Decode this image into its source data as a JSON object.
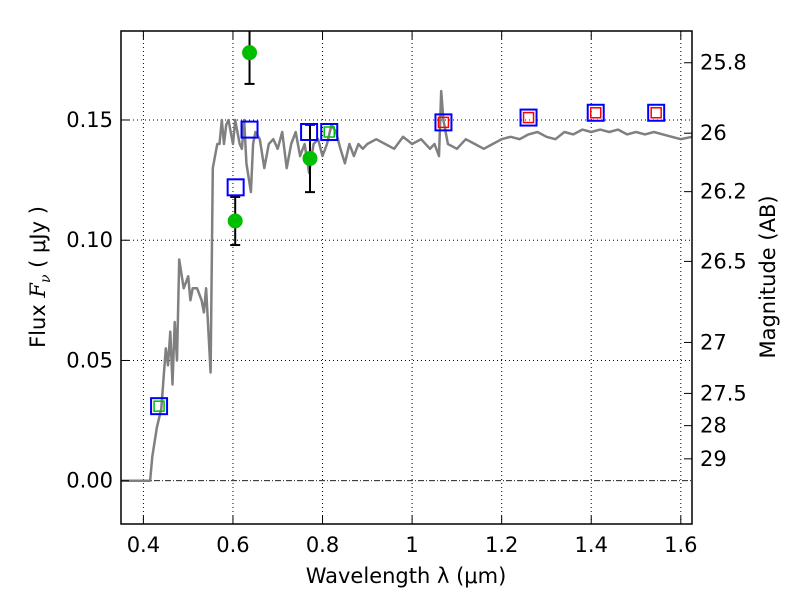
{
  "chart_data": {
    "type": "scatter",
    "xlabel": "Wavelength  λ (μm)",
    "ylabel_text": "Flux  ",
    "ylabel_symbol": "F",
    "ylabel_sub": "ν",
    "ylabel_unit": "  ( μJy )",
    "y2label": "Magnitude (AB)",
    "xlim": [
      0.35,
      1.625
    ],
    "ylim": [
      -0.018,
      0.187
    ],
    "grid": true,
    "x_ticks": [
      0.4,
      0.6,
      0.8,
      1.0,
      1.2,
      1.4,
      1.6
    ],
    "x_tick_labels": [
      "0.4",
      "0.6",
      "0.8",
      "1",
      "1.2",
      "1.4",
      "1.6"
    ],
    "y_ticks": [
      0.0,
      0.05,
      0.1,
      0.15
    ],
    "y_tick_labels": [
      "0.00",
      "0.05",
      "0.10",
      "0.15"
    ],
    "mag_ticks": [
      {
        "label": "25.8",
        "flux": 0.1738
      },
      {
        "label": "26",
        "flux": 0.1445
      },
      {
        "label": "26.2",
        "flux": 0.1202
      },
      {
        "label": "26.5",
        "flux": 0.0912
      },
      {
        "label": "27",
        "flux": 0.0575
      },
      {
        "label": "27.5",
        "flux": 0.0363
      },
      {
        "label": "28",
        "flux": 0.0229
      },
      {
        "label": "29",
        "flux": 0.0091
      }
    ],
    "series": [
      {
        "style": "gray-line",
        "x": [
          0.35,
          0.38,
          0.4,
          0.415,
          0.42,
          0.43,
          0.44,
          0.45,
          0.455,
          0.46,
          0.465,
          0.47,
          0.475,
          0.48,
          0.49,
          0.5,
          0.505,
          0.51,
          0.52,
          0.53,
          0.535,
          0.54,
          0.545,
          0.55,
          0.555,
          0.56,
          0.565,
          0.57,
          0.575,
          0.58,
          0.585,
          0.59,
          0.595,
          0.6,
          0.605,
          0.61,
          0.615,
          0.62,
          0.625,
          0.63,
          0.64,
          0.645,
          0.65,
          0.66,
          0.67,
          0.68,
          0.69,
          0.7,
          0.71,
          0.72,
          0.73,
          0.74,
          0.75,
          0.76,
          0.77,
          0.78,
          0.79,
          0.8,
          0.81,
          0.82,
          0.83,
          0.84,
          0.85,
          0.86,
          0.87,
          0.88,
          0.89,
          0.9,
          0.92,
          0.94,
          0.96,
          0.98,
          1.0,
          1.02,
          1.04,
          1.05,
          1.06,
          1.065,
          1.07,
          1.08,
          1.1,
          1.12,
          1.14,
          1.16,
          1.18,
          1.2,
          1.22,
          1.24,
          1.26,
          1.28,
          1.3,
          1.32,
          1.34,
          1.36,
          1.38,
          1.4,
          1.42,
          1.44,
          1.46,
          1.48,
          1.5,
          1.52,
          1.54,
          1.56,
          1.58,
          1.6,
          1.625
        ],
        "y": [
          0.0,
          0.0,
          0.0,
          0.0,
          0.01,
          0.022,
          0.03,
          0.055,
          0.048,
          0.062,
          0.04,
          0.066,
          0.05,
          0.092,
          0.08,
          0.085,
          0.075,
          0.08,
          0.08,
          0.075,
          0.07,
          0.08,
          0.063,
          0.045,
          0.13,
          0.135,
          0.14,
          0.14,
          0.15,
          0.14,
          0.148,
          0.15,
          0.145,
          0.14,
          0.15,
          0.145,
          0.14,
          0.138,
          0.15,
          0.132,
          0.12,
          0.14,
          0.145,
          0.142,
          0.13,
          0.14,
          0.142,
          0.138,
          0.145,
          0.13,
          0.14,
          0.145,
          0.135,
          0.14,
          0.128,
          0.14,
          0.142,
          0.135,
          0.14,
          0.148,
          0.145,
          0.138,
          0.132,
          0.14,
          0.135,
          0.14,
          0.138,
          0.14,
          0.142,
          0.14,
          0.138,
          0.143,
          0.14,
          0.142,
          0.138,
          0.14,
          0.135,
          0.162,
          0.15,
          0.14,
          0.138,
          0.142,
          0.14,
          0.138,
          0.14,
          0.142,
          0.143,
          0.142,
          0.144,
          0.145,
          0.143,
          0.142,
          0.145,
          0.144,
          0.146,
          0.145,
          0.146,
          0.145,
          0.146,
          0.144,
          0.145,
          0.144,
          0.145,
          0.144,
          0.143,
          0.142,
          0.143
        ]
      },
      {
        "style": "green-circles-errorbars",
        "points": [
          {
            "x": 0.605,
            "y": 0.108,
            "err": 0.01
          },
          {
            "x": 0.637,
            "y": 0.178,
            "err": 0.013
          },
          {
            "x": 0.772,
            "y": 0.134,
            "err": 0.014
          }
        ]
      },
      {
        "style": "blue-squares",
        "points": [
          {
            "x": 0.435,
            "y": 0.031
          },
          {
            "x": 0.606,
            "y": 0.122
          },
          {
            "x": 0.637,
            "y": 0.146
          },
          {
            "x": 0.77,
            "y": 0.145
          },
          {
            "x": 0.815,
            "y": 0.145
          },
          {
            "x": 1.07,
            "y": 0.149
          },
          {
            "x": 1.26,
            "y": 0.151
          },
          {
            "x": 1.41,
            "y": 0.153
          },
          {
            "x": 1.545,
            "y": 0.153
          }
        ]
      },
      {
        "style": "green-squares-small",
        "points": [
          {
            "x": 0.435,
            "y": 0.031
          },
          {
            "x": 0.815,
            "y": 0.145
          }
        ]
      },
      {
        "style": "red-squares-small",
        "points": [
          {
            "x": 1.07,
            "y": 0.149
          },
          {
            "x": 1.26,
            "y": 0.151
          },
          {
            "x": 1.41,
            "y": 0.153
          },
          {
            "x": 1.545,
            "y": 0.153
          }
        ]
      }
    ]
  }
}
